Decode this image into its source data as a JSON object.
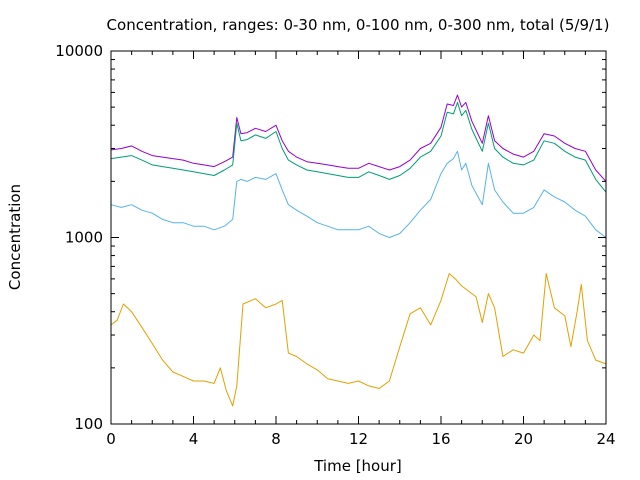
{
  "chart_data": {
    "type": "line",
    "title": "Concentration, ranges: 0-30 nm, 0-100 nm, 0-300 nm, total (5/9/1)",
    "xlabel": "Time [hour]",
    "ylabel": "Concentration",
    "xlim": [
      0,
      24
    ],
    "ylim": [
      100,
      10000
    ],
    "yscale": "log",
    "grid": false,
    "xticks": [
      0,
      4,
      8,
      12,
      16,
      20,
      24
    ],
    "xtick_labels": [
      "0",
      "4",
      "8",
      "12",
      "16",
      "20",
      "24"
    ],
    "yticks": [
      100,
      1000,
      10000
    ],
    "ytick_labels": [
      "100",
      "1000",
      "10000"
    ],
    "series": [
      {
        "color": "#9400d3",
        "x": [
          0,
          0.5,
          1,
          1.5,
          2,
          2.5,
          3,
          3.5,
          4,
          4.5,
          5,
          5.5,
          5.9,
          6.1,
          6.3,
          6.6,
          7,
          7.5,
          8,
          8.3,
          8.6,
          9,
          9.5,
          10,
          10.5,
          11,
          11.5,
          12,
          12.5,
          13,
          13.5,
          14,
          14.5,
          15,
          15.5,
          16,
          16.3,
          16.6,
          16.8,
          17,
          17.2,
          17.5,
          18,
          18.3,
          18.6,
          19,
          19.5,
          20,
          20.5,
          21,
          21.5,
          22,
          22.5,
          23,
          23.5,
          24
        ],
        "y": [
          2950,
          3000,
          3100,
          2900,
          2750,
          2700,
          2650,
          2600,
          2500,
          2450,
          2400,
          2550,
          2700,
          4400,
          3600,
          3650,
          3850,
          3700,
          4000,
          3300,
          2900,
          2700,
          2550,
          2500,
          2450,
          2400,
          2350,
          2350,
          2500,
          2400,
          2300,
          2400,
          2600,
          3000,
          3200,
          3900,
          5200,
          5100,
          5800,
          5000,
          5300,
          4200,
          3200,
          4500,
          3300,
          3000,
          2800,
          2700,
          2900,
          3600,
          3500,
          3200,
          3000,
          2900,
          2300,
          2000
        ]
      },
      {
        "color": "#009e73",
        "x": [
          0,
          0.5,
          1,
          1.5,
          2,
          2.5,
          3,
          3.5,
          4,
          4.5,
          5,
          5.5,
          5.9,
          6.1,
          6.3,
          6.6,
          7,
          7.5,
          8,
          8.3,
          8.6,
          9,
          9.5,
          10,
          10.5,
          11,
          11.5,
          12,
          12.5,
          13,
          13.5,
          14,
          14.5,
          15,
          15.5,
          16,
          16.3,
          16.6,
          16.8,
          17,
          17.2,
          17.5,
          18,
          18.3,
          18.6,
          19,
          19.5,
          20,
          20.5,
          21,
          21.5,
          22,
          22.5,
          23,
          23.5,
          24
        ],
        "y": [
          2650,
          2700,
          2750,
          2600,
          2450,
          2400,
          2350,
          2300,
          2250,
          2200,
          2150,
          2300,
          2450,
          4100,
          3300,
          3350,
          3550,
          3400,
          3700,
          3000,
          2600,
          2450,
          2300,
          2250,
          2200,
          2150,
          2100,
          2100,
          2250,
          2150,
          2050,
          2150,
          2350,
          2700,
          2900,
          3500,
          4700,
          4600,
          5300,
          4500,
          4800,
          3800,
          2900,
          4100,
          3000,
          2700,
          2500,
          2450,
          2600,
          3300,
          3200,
          2900,
          2700,
          2600,
          2050,
          1750
        ]
      },
      {
        "color": "#56b4e9",
        "x": [
          0,
          0.5,
          1,
          1.5,
          2,
          2.5,
          3,
          3.5,
          4,
          4.5,
          5,
          5.5,
          5.9,
          6.1,
          6.3,
          6.6,
          7,
          7.5,
          8,
          8.3,
          8.6,
          9,
          9.5,
          10,
          10.5,
          11,
          11.5,
          12,
          12.5,
          13,
          13.5,
          14,
          14.5,
          15,
          15.5,
          16,
          16.3,
          16.6,
          16.8,
          17,
          17.2,
          17.5,
          18,
          18.3,
          18.6,
          19,
          19.5,
          20,
          20.5,
          21,
          21.5,
          22,
          22.5,
          23,
          23.5,
          24
        ],
        "y": [
          1500,
          1450,
          1500,
          1400,
          1350,
          1250,
          1200,
          1200,
          1150,
          1150,
          1100,
          1150,
          1250,
          2000,
          2050,
          2000,
          2100,
          2050,
          2200,
          1800,
          1500,
          1400,
          1300,
          1200,
          1150,
          1100,
          1100,
          1100,
          1150,
          1050,
          1000,
          1050,
          1200,
          1400,
          1600,
          2200,
          2500,
          2650,
          2900,
          2300,
          2500,
          1900,
          1500,
          2500,
          1800,
          1550,
          1350,
          1350,
          1450,
          1800,
          1650,
          1550,
          1400,
          1300,
          1100,
          1000
        ]
      },
      {
        "color": "#e69f00",
        "x": [
          0,
          0.3,
          0.6,
          1,
          1.5,
          2,
          2.5,
          3,
          3.5,
          4,
          4.5,
          5,
          5.3,
          5.6,
          5.9,
          6.1,
          6.4,
          7,
          7.5,
          8,
          8.3,
          8.6,
          9,
          9.5,
          10,
          10.5,
          11,
          11.5,
          12,
          12.5,
          13,
          13.5,
          14,
          14.5,
          15,
          15.5,
          16,
          16.4,
          16.7,
          17,
          17.3,
          17.7,
          18,
          18.3,
          18.6,
          19,
          19.5,
          20,
          20.5,
          20.8,
          21.1,
          21.5,
          22,
          22.3,
          22.6,
          22.8,
          23.1,
          23.5,
          24
        ],
        "y": [
          340,
          360,
          440,
          400,
          330,
          270,
          220,
          190,
          180,
          170,
          170,
          165,
          200,
          150,
          125,
          160,
          440,
          470,
          420,
          440,
          460,
          240,
          230,
          210,
          195,
          175,
          170,
          165,
          170,
          160,
          155,
          170,
          260,
          390,
          420,
          340,
          460,
          640,
          600,
          550,
          520,
          480,
          350,
          500,
          420,
          230,
          250,
          240,
          300,
          280,
          640,
          420,
          380,
          260,
          400,
          560,
          280,
          220,
          210
        ]
      }
    ]
  }
}
